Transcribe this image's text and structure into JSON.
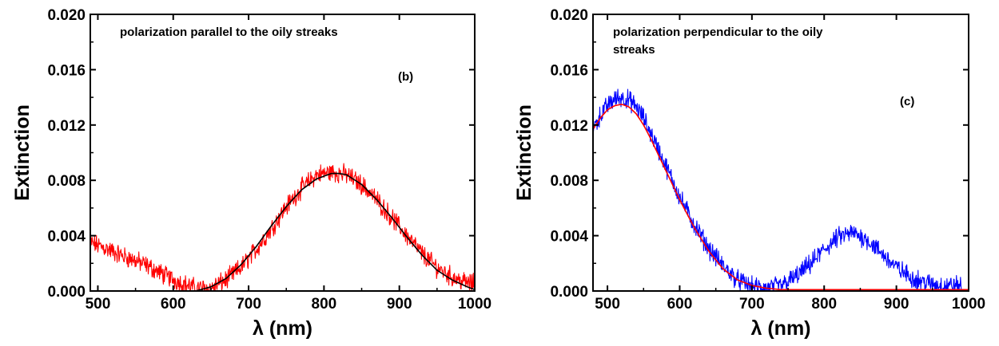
{
  "chart_data": [
    {
      "type": "line",
      "panel": "(b)",
      "annotation": "polarization parallel to the oily streaks",
      "xlabel": "λ (nm)",
      "ylabel": "Extinction",
      "xlim": [
        490,
        1000
      ],
      "ylim": [
        0,
        0.02
      ],
      "xticks": [
        500,
        600,
        700,
        800,
        900,
        1000
      ],
      "xtick_labels": [
        "500",
        "600",
        "700",
        "800",
        "900",
        "1000"
      ],
      "yticks": [
        0,
        0.004,
        0.008,
        0.012,
        0.016,
        0.02
      ],
      "ytick_labels": [
        "0.000",
        "0.004",
        "0.008",
        "0.012",
        "0.016",
        "0.020"
      ],
      "grid": false,
      "series": [
        {
          "color": "#ff0000",
          "style": "noisy",
          "x": [
            490,
            510,
            530,
            550,
            570,
            590,
            610,
            630,
            650,
            670,
            690,
            710,
            730,
            750,
            770,
            790,
            810,
            830,
            850,
            870,
            890,
            910,
            930,
            950,
            970,
            990,
            1000
          ],
          "y": [
            0.0035,
            0.0031,
            0.0026,
            0.0022,
            0.0017,
            0.0011,
            0.0006,
            0.0002,
            0.0002,
            0.0008,
            0.0017,
            0.003,
            0.0045,
            0.0061,
            0.0074,
            0.0084,
            0.0086,
            0.0084,
            0.0077,
            0.0066,
            0.0053,
            0.004,
            0.0027,
            0.0017,
            0.001,
            0.0006,
            0.0005
          ]
        },
        {
          "color": "#000000",
          "style": "fit",
          "x": [
            630,
            650,
            670,
            690,
            710,
            730,
            750,
            770,
            790,
            810,
            820,
            830,
            850,
            870,
            890,
            910,
            930,
            950,
            970,
            990,
            1000
          ],
          "y": [
            0.0,
            0.0003,
            0.0009,
            0.0019,
            0.0032,
            0.0047,
            0.0061,
            0.0073,
            0.0081,
            0.0085,
            0.0085,
            0.0084,
            0.0077,
            0.0066,
            0.0053,
            0.0039,
            0.0026,
            0.0015,
            0.0008,
            0.0003,
            0.0001
          ]
        }
      ]
    },
    {
      "type": "line",
      "panel": "(c)",
      "annotation": "polarization perpendicular to the oily streaks",
      "xlabel": "λ (nm)",
      "ylabel": "Extinction",
      "xlim": [
        480,
        1000
      ],
      "ylim": [
        0,
        0.02
      ],
      "xticks": [
        500,
        600,
        700,
        800,
        900,
        1000
      ],
      "xtick_labels": [
        "500",
        "600",
        "700",
        "800",
        "900",
        "1000"
      ],
      "yticks": [
        0,
        0.004,
        0.008,
        0.012,
        0.016,
        0.02
      ],
      "ytick_labels": [
        "0.000",
        "0.004",
        "0.008",
        "0.012",
        "0.016",
        "0.020"
      ],
      "grid": false,
      "series": [
        {
          "color": "#0000ff",
          "style": "noisy",
          "x": [
            480,
            490,
            500,
            510,
            520,
            530,
            540,
            550,
            560,
            570,
            580,
            590,
            600,
            620,
            640,
            660,
            680,
            700,
            720,
            740,
            760,
            780,
            800,
            820,
            840,
            860,
            880,
            900,
            920,
            940,
            960,
            980,
            990
          ],
          "y": [
            0.0117,
            0.0127,
            0.0134,
            0.0139,
            0.014,
            0.0138,
            0.0133,
            0.0125,
            0.0114,
            0.0103,
            0.0091,
            0.008,
            0.0068,
            0.0048,
            0.0031,
            0.0018,
            0.0008,
            0.0003,
            0.0002,
            0.0004,
            0.001,
            0.0019,
            0.003,
            0.0039,
            0.0042,
            0.0037,
            0.0027,
            0.0017,
            0.001,
            0.0006,
            0.0004,
            0.0004,
            0.0004
          ]
        },
        {
          "color": "#ff0000",
          "style": "fit",
          "x": [
            480,
            490,
            500,
            510,
            520,
            530,
            540,
            550,
            560,
            570,
            580,
            590,
            600,
            620,
            640,
            660,
            680,
            700,
            720,
            740,
            760,
            800,
            850,
            900,
            950,
            1000
          ],
          "y": [
            0.0117,
            0.0125,
            0.0131,
            0.0134,
            0.0135,
            0.0133,
            0.0128,
            0.012,
            0.011,
            0.0099,
            0.0088,
            0.0077,
            0.0066,
            0.0046,
            0.0029,
            0.0016,
            0.0008,
            0.0004,
            0.0002,
            0.0001,
            0.0001,
            0.0001,
            0.0001,
            0.0001,
            0.0001,
            0.0001
          ]
        }
      ]
    }
  ]
}
